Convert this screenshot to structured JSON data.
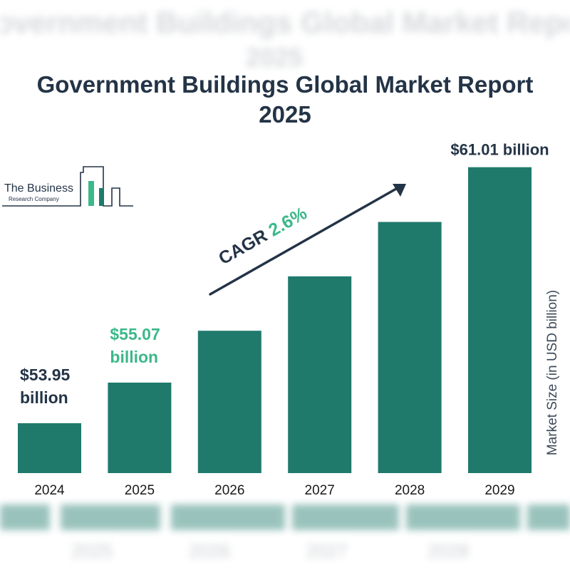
{
  "title_line1": "Government Buildings Global Market Report",
  "title_line2": "2025",
  "logo": {
    "name": "The Business",
    "sub": "Research Company"
  },
  "cagr": {
    "label": "CAGR",
    "value": "2.6%"
  },
  "colors": {
    "bar": "#1f7a6c",
    "title": "#243447",
    "highlight": "#3cb88a"
  },
  "chart_data": {
    "type": "bar",
    "title": "Government Buildings Global Market Report 2025",
    "xlabel": "",
    "ylabel": "Market Size (in USD billion)",
    "categories": [
      "2024",
      "2025",
      "2026",
      "2027",
      "2028",
      "2029"
    ],
    "values": [
      53.95,
      55.07,
      56.5,
      58.0,
      59.5,
      61.01
    ],
    "data_labels": [
      {
        "index": 0,
        "line1": "$53.95",
        "line2": "billion",
        "highlight": false
      },
      {
        "index": 1,
        "line1": "$55.07",
        "line2": "billion",
        "highlight": true
      },
      {
        "index": 5,
        "line1": "$61.01 billion",
        "line2": "",
        "highlight": false
      }
    ],
    "grid": false,
    "legend": "none"
  }
}
